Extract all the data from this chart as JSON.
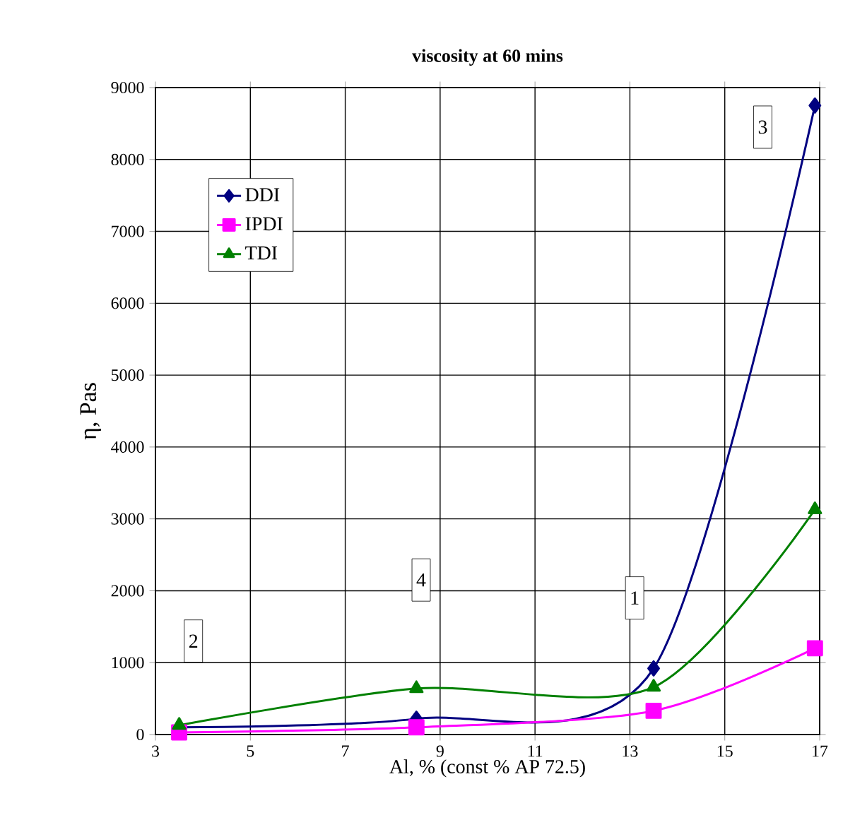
{
  "chart_data": {
    "type": "line",
    "title": "viscosity at 60 mins",
    "xlabel": "Al, %  (const % AP 72.5)",
    "ylabel": "η, Pas",
    "x": [
      3.5,
      8.5,
      13.5,
      16.9
    ],
    "series": [
      {
        "name": "DDI",
        "color": "#000080",
        "marker": "diamond",
        "values": [
          100,
          220,
          920,
          8750
        ]
      },
      {
        "name": "IPDI",
        "color": "#ff00ff",
        "marker": "square",
        "values": [
          30,
          100,
          330,
          1200
        ]
      },
      {
        "name": "TDI",
        "color": "#008000",
        "marker": "triangle",
        "values": [
          130,
          640,
          660,
          3130
        ]
      }
    ],
    "xlim": [
      3,
      17
    ],
    "xticks": [
      3,
      5,
      7,
      9,
      11,
      13,
      15,
      17
    ],
    "ylim": [
      0,
      9000
    ],
    "yticks": [
      0,
      1000,
      2000,
      3000,
      4000,
      5000,
      6000,
      7000,
      8000,
      9000
    ],
    "grid": true,
    "legend": "top left",
    "line_style": "solid",
    "annotations": [
      {
        "text": "1",
        "x": 13.1,
        "y": 1900
      },
      {
        "text": "2",
        "x": 3.8,
        "y": 1300
      },
      {
        "text": "3",
        "x": 15.8,
        "y": 8450
      },
      {
        "text": "4",
        "x": 8.6,
        "y": 2150
      }
    ]
  }
}
